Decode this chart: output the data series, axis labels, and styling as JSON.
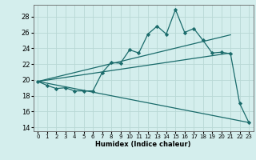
{
  "xlabel": "Humidex (Indice chaleur)",
  "ylabel": "",
  "xlim": [
    -0.5,
    23.5
  ],
  "ylim": [
    13.5,
    29.5
  ],
  "xticks": [
    0,
    1,
    2,
    3,
    4,
    5,
    6,
    7,
    8,
    9,
    10,
    11,
    12,
    13,
    14,
    15,
    16,
    17,
    18,
    19,
    20,
    21,
    22,
    23
  ],
  "yticks": [
    14,
    16,
    18,
    20,
    22,
    24,
    26,
    28
  ],
  "background_color": "#d4eeed",
  "grid_color": "#b8d8d5",
  "line_color": "#1a6b6b",
  "line1_x": [
    0,
    1,
    2,
    3,
    4,
    5,
    6,
    7,
    8,
    9,
    10,
    11,
    12,
    13,
    14,
    15,
    16,
    17,
    18,
    19,
    20,
    21,
    22,
    23
  ],
  "line1_y": [
    19.8,
    19.3,
    18.9,
    19.0,
    18.6,
    18.6,
    18.6,
    20.9,
    22.2,
    22.1,
    23.8,
    23.4,
    25.8,
    26.8,
    25.8,
    28.9,
    26.0,
    26.5,
    25.0,
    23.4,
    23.5,
    23.3,
    17.0,
    14.6
  ],
  "line2_x": [
    0,
    21
  ],
  "line2_y": [
    19.8,
    25.7
  ],
  "line3_x": [
    0,
    21
  ],
  "line3_y": [
    19.8,
    23.4
  ],
  "line4_x": [
    0,
    23
  ],
  "line4_y": [
    19.8,
    14.6
  ],
  "xlabel_fontsize": 6.0,
  "ytick_fontsize": 6.0,
  "xtick_fontsize": 5.0
}
